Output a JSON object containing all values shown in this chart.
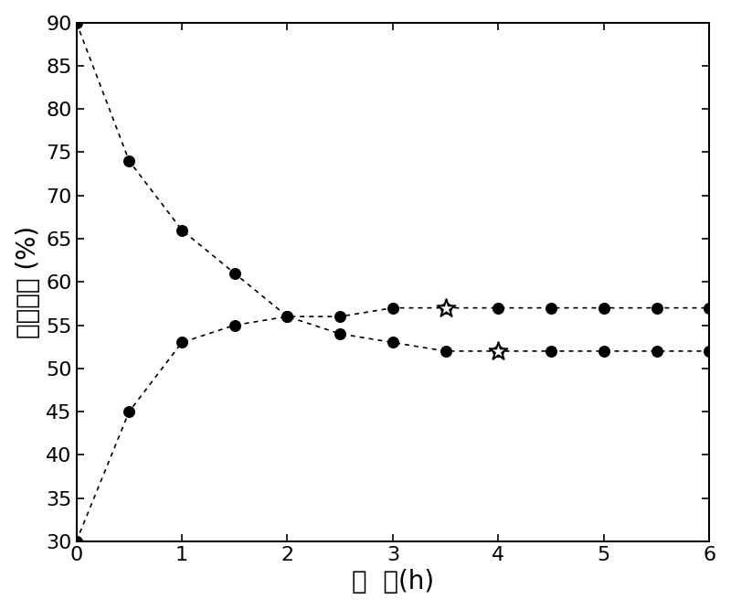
{
  "upper_x": [
    0,
    0.5,
    1,
    1.5,
    2,
    2.5,
    3,
    3.5,
    4,
    4.5,
    5,
    5.5,
    6
  ],
  "upper_y": [
    90,
    74,
    66,
    61,
    56,
    56,
    57,
    57,
    57,
    57,
    57,
    57,
    57
  ],
  "upper_star_x": 3.5,
  "upper_star_y": 57,
  "lower_x": [
    0,
    0.5,
    1,
    1.5,
    2,
    2.5,
    3,
    3.5,
    4,
    4.5,
    5,
    5.5,
    6
  ],
  "lower_y": [
    30,
    45,
    53,
    55,
    56,
    54,
    53,
    52,
    52,
    52,
    52,
    52,
    52
  ],
  "lower_star_x": 4,
  "lower_star_y": 52,
  "xlim": [
    0,
    6
  ],
  "ylim": [
    30,
    90
  ],
  "xticks": [
    0,
    1,
    2,
    3,
    4,
    5,
    6
  ],
  "yticks": [
    30,
    35,
    40,
    45,
    50,
    55,
    60,
    65,
    70,
    75,
    80,
    85,
    90
  ],
  "xlabel": "时  间(h)",
  "ylabel": "相对湿度 (%)",
  "line_color": "#000000",
  "marker_color": "#000000",
  "background_color": "#ffffff",
  "dot_size": 70,
  "star_size": 220,
  "linewidth": 1.2,
  "xlabel_fontsize": 20,
  "ylabel_fontsize": 20,
  "tick_fontsize": 16
}
